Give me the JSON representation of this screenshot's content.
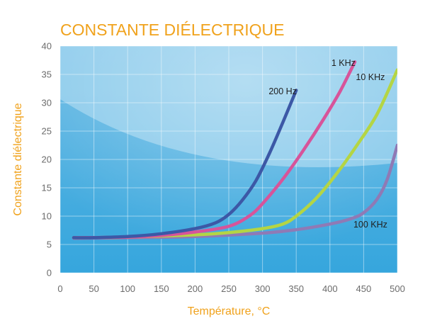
{
  "chart_data": {
    "type": "line",
    "title": "CONSTANTE DIÉLECTRIQUE",
    "xlabel": "Température, °C",
    "ylabel": "Constante diélectrique",
    "xlim": [
      0,
      500
    ],
    "ylim": [
      0,
      40
    ],
    "x_ticks": [
      "0",
      "50",
      "100",
      "150",
      "200",
      "250",
      "300",
      "350",
      "400",
      "450",
      "500"
    ],
    "y_ticks": [
      "0",
      "5",
      "10",
      "15",
      "20",
      "25",
      "30",
      "35",
      "40"
    ],
    "grid": true,
    "series": [
      {
        "name": "200 Hz",
        "color": "#3c58a6",
        "points": [
          [
            20,
            6.2
          ],
          [
            50,
            6.2
          ],
          [
            100,
            6.4
          ],
          [
            150,
            6.9
          ],
          [
            200,
            7.8
          ],
          [
            230,
            8.8
          ],
          [
            250,
            10.3
          ],
          [
            270,
            12.8
          ],
          [
            290,
            16.2
          ],
          [
            310,
            21
          ],
          [
            330,
            26.5
          ],
          [
            350,
            32.2
          ]
        ]
      },
      {
        "name": "1 KHz",
        "color": "#d7549a",
        "points": [
          [
            20,
            6.2
          ],
          [
            100,
            6.3
          ],
          [
            150,
            6.6
          ],
          [
            200,
            7.2
          ],
          [
            250,
            8.2
          ],
          [
            280,
            10
          ],
          [
            300,
            12.2
          ],
          [
            330,
            16.5
          ],
          [
            360,
            21.5
          ],
          [
            390,
            27
          ],
          [
            415,
            32
          ],
          [
            437,
            37.2
          ]
        ]
      },
      {
        "name": "10 KHz",
        "color": "#b4d544",
        "points": [
          [
            20,
            6.2
          ],
          [
            100,
            6.3
          ],
          [
            200,
            6.7
          ],
          [
            250,
            7.1
          ],
          [
            300,
            7.8
          ],
          [
            330,
            8.6
          ],
          [
            350,
            10
          ],
          [
            380,
            13.2
          ],
          [
            410,
            17.5
          ],
          [
            440,
            22.5
          ],
          [
            470,
            28
          ],
          [
            500,
            35.8
          ]
        ]
      },
      {
        "name": "100 KHz",
        "color": "#8f7ab5",
        "points": [
          [
            20,
            6.1
          ],
          [
            100,
            6.2
          ],
          [
            200,
            6.4
          ],
          [
            300,
            7
          ],
          [
            350,
            7.6
          ],
          [
            400,
            8.6
          ],
          [
            430,
            9.5
          ],
          [
            450,
            10.6
          ],
          [
            470,
            13
          ],
          [
            485,
            16.5
          ],
          [
            500,
            22.5
          ]
        ]
      }
    ],
    "annotations": [
      {
        "text": "200 Hz",
        "x": 330,
        "y": 32
      },
      {
        "text": "1 KHz",
        "x": 420,
        "y": 37
      },
      {
        "text": "10 KHz",
        "x": 460,
        "y": 34.5
      },
      {
        "text": "100 KHz",
        "x": 460,
        "y": 8.5
      }
    ]
  }
}
